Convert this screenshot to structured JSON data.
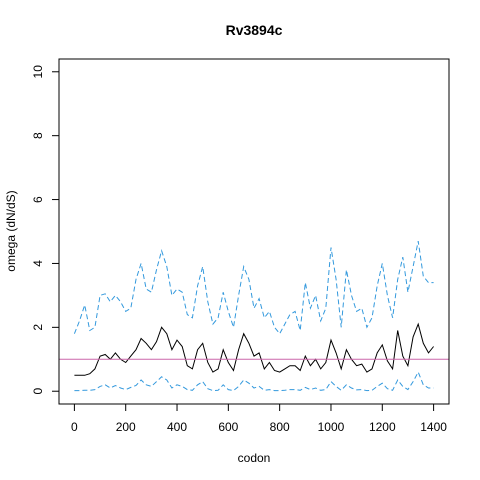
{
  "chart_data": {
    "type": "line",
    "title": "Rv3894c",
    "xlabel": "codon",
    "ylabel": "omega (dN/dS)",
    "xlim": [
      -60,
      1460
    ],
    "ylim": [
      -0.4,
      10.4
    ],
    "xticks": [
      0,
      200,
      400,
      600,
      800,
      1000,
      1200,
      1400
    ],
    "yticks": [
      0,
      2,
      4,
      6,
      8,
      10
    ],
    "grid": false,
    "reference_line": {
      "y": 1,
      "color": "#cc66aa"
    },
    "series": [
      {
        "style": "solid",
        "color": "#000000",
        "x": [
          0,
          20,
          40,
          60,
          80,
          100,
          120,
          140,
          160,
          180,
          200,
          220,
          240,
          260,
          280,
          300,
          320,
          340,
          360,
          380,
          400,
          420,
          440,
          460,
          480,
          500,
          520,
          540,
          560,
          580,
          600,
          620,
          640,
          660,
          680,
          700,
          720,
          740,
          760,
          780,
          800,
          820,
          840,
          860,
          880,
          900,
          920,
          940,
          960,
          980,
          1000,
          1020,
          1040,
          1060,
          1080,
          1100,
          1120,
          1140,
          1160,
          1180,
          1200,
          1220,
          1240,
          1260,
          1280,
          1300,
          1320,
          1340,
          1360,
          1380,
          1400
        ],
        "y": [
          0.5,
          0.5,
          0.5,
          0.55,
          0.7,
          1.1,
          1.15,
          1.0,
          1.2,
          1.0,
          0.9,
          1.1,
          1.3,
          1.65,
          1.5,
          1.3,
          1.55,
          2.0,
          1.8,
          1.3,
          1.6,
          1.4,
          0.8,
          0.7,
          1.3,
          1.5,
          0.9,
          0.6,
          0.7,
          1.3,
          0.9,
          0.65,
          1.3,
          1.8,
          1.5,
          1.1,
          1.2,
          0.7,
          0.9,
          0.65,
          0.6,
          0.7,
          0.8,
          0.8,
          0.65,
          1.1,
          0.8,
          1.0,
          0.7,
          0.9,
          1.6,
          1.2,
          0.7,
          1.3,
          1.0,
          0.8,
          0.85,
          0.6,
          0.7,
          1.2,
          1.45,
          0.95,
          0.7,
          1.9,
          1.1,
          0.8,
          1.7,
          2.1,
          1.5,
          1.2,
          1.4
        ]
      },
      {
        "style": "dashed",
        "color": "#3399dd",
        "x": [
          0,
          20,
          40,
          60,
          80,
          100,
          120,
          140,
          160,
          180,
          200,
          220,
          240,
          260,
          280,
          300,
          320,
          340,
          360,
          380,
          400,
          420,
          440,
          460,
          480,
          500,
          520,
          540,
          560,
          580,
          600,
          620,
          640,
          660,
          680,
          700,
          720,
          740,
          760,
          780,
          800,
          820,
          840,
          860,
          880,
          900,
          920,
          940,
          960,
          980,
          1000,
          1020,
          1040,
          1060,
          1080,
          1100,
          1120,
          1140,
          1160,
          1180,
          1200,
          1220,
          1240,
          1260,
          1280,
          1300,
          1320,
          1340,
          1360,
          1380,
          1400
        ],
        "y": [
          1.8,
          2.2,
          2.7,
          1.9,
          2.0,
          3.0,
          3.05,
          2.8,
          3.0,
          2.8,
          2.5,
          2.6,
          3.5,
          4.0,
          3.2,
          3.1,
          3.8,
          4.4,
          3.9,
          3.0,
          3.2,
          3.1,
          2.4,
          2.3,
          3.3,
          3.9,
          2.8,
          2.1,
          2.3,
          3.1,
          2.5,
          2.0,
          3.0,
          3.9,
          3.5,
          2.6,
          2.9,
          2.3,
          2.5,
          2.0,
          1.8,
          2.1,
          2.4,
          2.5,
          1.9,
          3.4,
          2.6,
          3.0,
          2.2,
          2.6,
          4.5,
          3.5,
          2.0,
          3.8,
          3.0,
          2.5,
          2.6,
          2.0,
          2.3,
          3.3,
          4.0,
          3.0,
          2.3,
          3.5,
          4.2,
          3.1,
          3.9,
          4.7,
          3.6,
          3.4,
          3.4
        ]
      },
      {
        "style": "dashed",
        "color": "#3399dd",
        "x": [
          0,
          20,
          40,
          60,
          80,
          100,
          120,
          140,
          160,
          180,
          200,
          220,
          240,
          260,
          280,
          300,
          320,
          340,
          360,
          380,
          400,
          420,
          440,
          460,
          480,
          500,
          520,
          540,
          560,
          580,
          600,
          620,
          640,
          660,
          680,
          700,
          720,
          740,
          760,
          780,
          800,
          820,
          840,
          860,
          880,
          900,
          920,
          940,
          960,
          980,
          1000,
          1020,
          1040,
          1060,
          1080,
          1100,
          1120,
          1140,
          1160,
          1180,
          1200,
          1220,
          1240,
          1260,
          1280,
          1300,
          1320,
          1340,
          1360,
          1380,
          1400
        ],
        "y": [
          0.02,
          0.02,
          0.03,
          0.03,
          0.05,
          0.15,
          0.2,
          0.1,
          0.18,
          0.1,
          0.05,
          0.12,
          0.18,
          0.35,
          0.2,
          0.15,
          0.3,
          0.45,
          0.35,
          0.1,
          0.2,
          0.15,
          0.05,
          0.03,
          0.2,
          0.3,
          0.08,
          0.02,
          0.03,
          0.2,
          0.05,
          0.02,
          0.15,
          0.35,
          0.25,
          0.1,
          0.15,
          0.03,
          0.05,
          0.02,
          0.02,
          0.03,
          0.05,
          0.05,
          0.03,
          0.12,
          0.05,
          0.1,
          0.03,
          0.05,
          0.3,
          0.15,
          0.03,
          0.2,
          0.1,
          0.04,
          0.05,
          0.02,
          0.03,
          0.15,
          0.25,
          0.08,
          0.03,
          0.35,
          0.15,
          0.05,
          0.3,
          0.6,
          0.2,
          0.1,
          0.1
        ]
      }
    ]
  }
}
